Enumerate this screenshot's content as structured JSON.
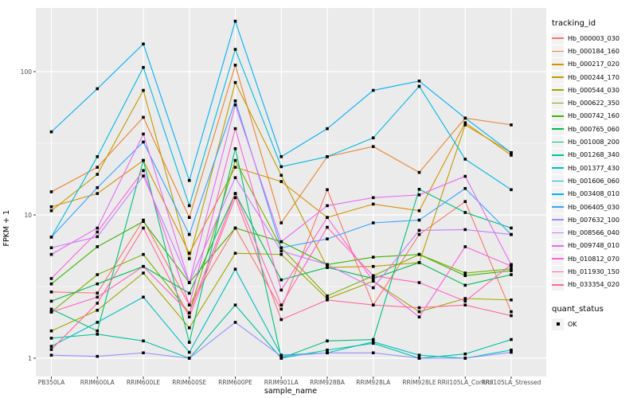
{
  "chart_data": {
    "type": "line",
    "title": "",
    "xlabel": "sample_name",
    "ylabel": "FPKM + 1",
    "y_scale": "log10",
    "y_ticks": [
      "1",
      "10",
      "100"
    ],
    "y_tick_values": [
      1,
      10,
      100
    ],
    "y_minor_values": [
      3.162,
      31.62
    ],
    "ylim": [
      0.93,
      260
    ],
    "grid": "on",
    "panel_bg": "#EBEBEB",
    "grid_color": "#FFFFFF",
    "point_color": "#000000",
    "legend_position": "right",
    "legend_title": "tracking_id",
    "x_categories": [
      "PB350LA",
      "RRIM600LA",
      "RRIM600LE",
      "RRIM600SE",
      "RRIM600PE",
      "RRIM901LA",
      "RRIM928BA",
      "RRIM928LA",
      "RRIM928LE",
      "RRII105LA_Control",
      "RRII105LA_Stressed"
    ],
    "series": [
      {
        "name": "Hb_000003_030",
        "color": "#F8766D",
        "values": [
          2.9,
          2.85,
          9.2,
          2.35,
          8.1,
          2.2,
          15,
          2.35,
          7.3,
          12.4,
          2.11
        ]
      },
      {
        "name": "Hb_000184_160",
        "color": "#EA8331",
        "values": [
          14.5,
          21.5,
          48,
          9.6,
          111,
          8.8,
          25.5,
          30,
          19.8,
          47.4,
          42.5
        ]
      },
      {
        "name": "Hb_000217_020",
        "color": "#D89000",
        "values": [
          11.4,
          14.1,
          24,
          5.4,
          21.5,
          17.1,
          9.6,
          11.9,
          10.7,
          44,
          26.1
        ]
      },
      {
        "name": "Hb_000244_170",
        "color": "#C09B00",
        "values": [
          10.7,
          19.2,
          74,
          4.95,
          84,
          18.9,
          4.3,
          4.37,
          4.65,
          42.5,
          27.2
        ]
      },
      {
        "name": "Hb_000544_030",
        "color": "#A3A500",
        "values": [
          1.55,
          2.16,
          3.93,
          1.63,
          5.4,
          5.3,
          2.6,
          3.45,
          2.11,
          2.61,
          2.55
        ]
      },
      {
        "name": "Hb_000622_350",
        "color": "#7CAE00",
        "values": [
          2.1,
          3.83,
          5.3,
          2.07,
          24,
          5.9,
          2.72,
          3.76,
          5.3,
          3.93,
          4.2
        ]
      },
      {
        "name": "Hb_000742_160",
        "color": "#39B600",
        "values": [
          3.3,
          6.0,
          9.0,
          3.37,
          8.1,
          6.5,
          4.5,
          5.07,
          5.3,
          3.77,
          4.08
        ]
      },
      {
        "name": "Hb_000765_060",
        "color": "#00BB4E",
        "values": [
          2.5,
          3.3,
          4.37,
          2.84,
          14.1,
          3.52,
          4.3,
          3.6,
          4.65,
          3.23,
          3.83
        ]
      },
      {
        "name": "Hb_001008_200",
        "color": "#00BF7D",
        "values": [
          2.2,
          1.55,
          24,
          1.29,
          29,
          1.0,
          1.32,
          1.35,
          15.1,
          10.4,
          8.1
        ]
      },
      {
        "name": "Hb_001268_340",
        "color": "#00C1A3",
        "values": [
          1.38,
          1.47,
          1.32,
          1.0,
          2.35,
          1.0,
          1.14,
          1.27,
          1.0,
          1.07,
          1.35
        ]
      },
      {
        "name": "Hb_001377_430",
        "color": "#00BFC4",
        "values": [
          1.21,
          1.78,
          2.67,
          1.1,
          4.18,
          1.05,
          1.09,
          1.3,
          1.05,
          1.0,
          1.14
        ]
      },
      {
        "name": "Hb_001606_060",
        "color": "#00BAE0",
        "values": [
          7.0,
          25.5,
          107,
          11.6,
          143,
          21.7,
          25.5,
          34.5,
          79,
          24.5,
          15
        ]
      },
      {
        "name": "Hb_003408_010",
        "color": "#00B0F6",
        "values": [
          38,
          76,
          156,
          17.4,
          225,
          25.5,
          40,
          74,
          86,
          47.4,
          27.2
        ]
      },
      {
        "name": "Hb_006405_030",
        "color": "#35A2FF",
        "values": [
          7.0,
          15.5,
          32.3,
          7.3,
          62.5,
          5.9,
          6.8,
          8.8,
          9.2,
          15.3,
          7.3
        ]
      },
      {
        "name": "Hb_007632_100",
        "color": "#9590FF",
        "values": [
          1.05,
          1.03,
          1.09,
          1.0,
          1.78,
          1.03,
          1.09,
          1.09,
          1.0,
          1.0,
          1.1
        ]
      },
      {
        "name": "Hb_008566_040",
        "color": "#C77CFF",
        "values": [
          5.9,
          7.05,
          18.7,
          3.37,
          18.2,
          5.6,
          4.5,
          3.1,
          7.8,
          7.9,
          7.3
        ]
      },
      {
        "name": "Hb_009748_010",
        "color": "#E76BF3",
        "values": [
          5.3,
          8.1,
          36.7,
          3.37,
          58.6,
          6.5,
          11.6,
          13.2,
          13.8,
          18.6,
          4.5
        ]
      },
      {
        "name": "Hb_010812_070",
        "color": "#FA62DB",
        "values": [
          3.6,
          7.6,
          20.4,
          2.35,
          40,
          2.99,
          9.6,
          3.45,
          1.94,
          6.0,
          4.4
        ]
      },
      {
        "name": "Hb_011930_150",
        "color": "#FF62BC",
        "values": [
          2.1,
          2.67,
          4.37,
          2.07,
          14.1,
          2.35,
          8.2,
          3.76,
          3.37,
          2.5,
          4.5
        ]
      },
      {
        "name": "Hb_033354_020",
        "color": "#FF6A98",
        "values": [
          1.15,
          2.42,
          8.1,
          1.94,
          13.2,
          1.86,
          2.55,
          2.35,
          2.25,
          2.35,
          1.98
        ]
      }
    ],
    "legend2_title": "quant_status",
    "legend2_items": [
      {
        "label": "OK",
        "marker": "black-square"
      }
    ]
  }
}
